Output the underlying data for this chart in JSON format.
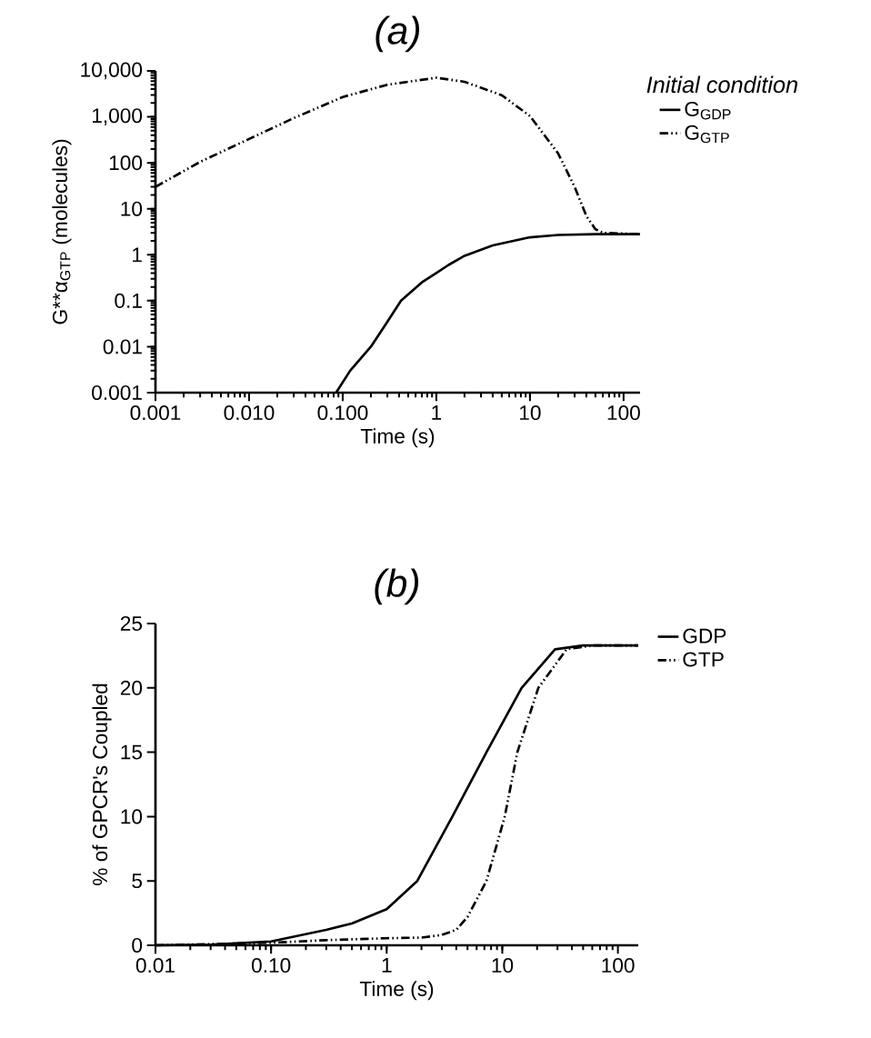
{
  "chart_data": [
    {
      "type": "line",
      "title": "(a)",
      "xlabel": "Time (s)",
      "ylabel": "G**α$_{GTP}$ (molecules)",
      "legend_title": "Initial condition",
      "log": "xy",
      "legend": "top right",
      "xlim": [
        0.001,
        150
      ],
      "ylim": [
        0.001,
        10000
      ],
      "xticks": [
        {
          "value": 0.001,
          "label": "0.001"
        },
        {
          "value": 0.01,
          "label": "0.010"
        },
        {
          "value": 0.1,
          "label": "0.100"
        },
        1,
        10,
        100
      ],
      "yticks": [
        0.001,
        0.01,
        0.1,
        1,
        10,
        100,
        {
          "value": 1000,
          "label": "1,000"
        },
        {
          "value": 10000,
          "label": "10,000"
        }
      ],
      "series": [
        {
          "name": "G$_{GDP}$",
          "color": "#000000",
          "line_style": "solid",
          "x": [
            0.085,
            0.12,
            0.2,
            0.3,
            0.42,
            0.7,
            1,
            1.35,
            2,
            4,
            10,
            20,
            50,
            150
          ],
          "values": [
            0.001,
            0.003,
            0.01,
            0.035,
            0.1,
            0.25,
            0.4,
            0.6,
            0.95,
            1.6,
            2.4,
            2.7,
            2.8,
            2.8
          ]
        },
        {
          "name": "G$_{GTP}$",
          "color": "#000000",
          "line_style": "dashdotdotted",
          "x": [
            0.001,
            0.003,
            0.01,
            0.03,
            0.1,
            0.3,
            1,
            2,
            5,
            10,
            20,
            30,
            40,
            50,
            60,
            150
          ],
          "values": [
            30,
            105,
            330,
            940,
            2700,
            5000,
            7100,
            5800,
            2960,
            1040,
            160,
            30,
            7,
            3.6,
            3,
            2.8
          ]
        }
      ]
    },
    {
      "type": "line",
      "title": "(b)",
      "xlabel": "Time (s)",
      "ylabel": "% of GPCR's Coupled",
      "log": "x",
      "legend": "top right",
      "xlim": [
        0.01,
        150
      ],
      "ylim": [
        0,
        25
      ],
      "xticks": [
        0.01,
        {
          "value": 0.1,
          "label": "0.10"
        },
        1,
        10,
        100
      ],
      "yticks": [
        0,
        5,
        10,
        15,
        20,
        25
      ],
      "series": [
        {
          "name": "GDP",
          "color": "#000000",
          "line_style": "solid",
          "x": [
            0.01,
            0.03,
            0.1,
            0.3,
            0.5,
            1,
            1.84,
            3.7,
            7.3,
            14.7,
            28.6,
            50,
            150
          ],
          "values": [
            0,
            0.05,
            0.3,
            1.2,
            1.7,
            2.8,
            5,
            10,
            15,
            20,
            23,
            23.3,
            23.3
          ]
        },
        {
          "name": "GTP",
          "color": "#000000",
          "line_style": "dashdotdotted",
          "x": [
            0.01,
            0.1,
            0.3,
            1,
            2,
            3,
            4,
            5,
            7.3,
            10.5,
            13.5,
            20.5,
            36,
            60,
            150
          ],
          "values": [
            0,
            0.2,
            0.4,
            0.55,
            0.6,
            0.8,
            1.2,
            2.2,
            5,
            10,
            15,
            20,
            23,
            23.3,
            23.3
          ]
        }
      ]
    }
  ]
}
